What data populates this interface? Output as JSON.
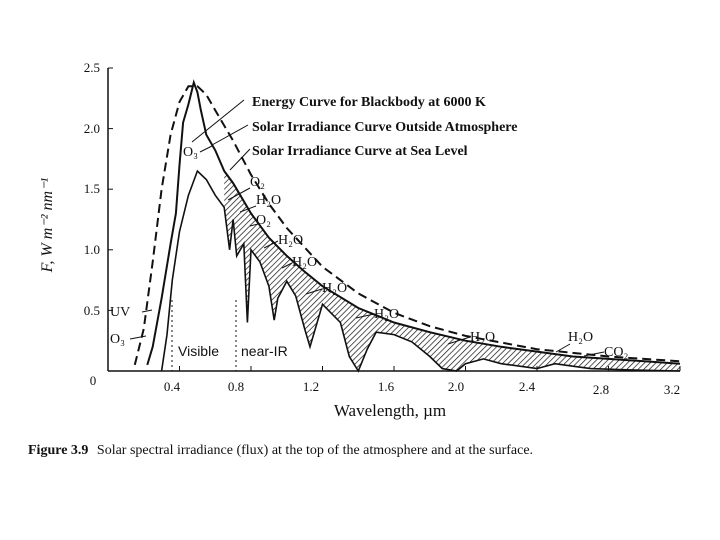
{
  "chart_data": {
    "type": "line",
    "title": "Solar spectral irradiance",
    "xlabel": "Wavelength,  µm",
    "ylabel": "F,   W m⁻² nm⁻¹",
    "xlim": [
      0,
      3.2
    ],
    "ylim": [
      0,
      2.5
    ],
    "x_ticks": [
      0.4,
      0.8,
      1.2,
      1.6,
      2.0,
      2.4,
      2.8,
      3.2
    ],
    "x_tick_labels": [
      "0.4",
      "0.8",
      "1.2",
      "1.6",
      "2.0",
      "2.4",
      "2.8",
      "3.2"
    ],
    "y_ticks": [
      0.5,
      1.0,
      1.5,
      2.0,
      2.5
    ],
    "y_tick_labels": [
      "0.5",
      "1.0",
      "1.5",
      "2.0",
      "2.5"
    ],
    "origin_label": "0",
    "series": [
      {
        "name": "Energy Curve for Blackbody at 6000 K",
        "style": "dashed",
        "x": [
          0.15,
          0.2,
          0.25,
          0.3,
          0.35,
          0.4,
          0.45,
          0.5,
          0.55,
          0.6,
          0.7,
          0.8,
          0.9,
          1.0,
          1.2,
          1.4,
          1.6,
          1.8,
          2.0,
          2.4,
          2.8,
          3.2
        ],
        "values": [
          0.05,
          0.35,
          0.9,
          1.5,
          1.95,
          2.22,
          2.35,
          2.35,
          2.28,
          2.15,
          1.9,
          1.62,
          1.38,
          1.18,
          0.86,
          0.64,
          0.48,
          0.37,
          0.29,
          0.18,
          0.12,
          0.08
        ]
      },
      {
        "name": "Solar Irradiance Curve Outside Atmosphere",
        "style": "solid",
        "x": [
          0.22,
          0.25,
          0.3,
          0.35,
          0.38,
          0.4,
          0.42,
          0.45,
          0.48,
          0.5,
          0.52,
          0.55,
          0.6,
          0.65,
          0.7,
          0.8,
          0.9,
          1.0,
          1.1,
          1.2,
          1.4,
          1.6,
          1.8,
          2.0,
          2.2,
          2.4,
          2.6,
          2.8,
          3.0,
          3.2
        ],
        "values": [
          0.05,
          0.2,
          0.6,
          1.05,
          1.3,
          1.7,
          2.05,
          2.2,
          2.38,
          2.3,
          2.15,
          1.95,
          1.82,
          1.65,
          1.55,
          1.3,
          1.1,
          0.95,
          0.82,
          0.7,
          0.52,
          0.4,
          0.32,
          0.25,
          0.2,
          0.16,
          0.12,
          0.1,
          0.08,
          0.06
        ]
      },
      {
        "name": "Solar Irradiance Curve at Sea Level",
        "style": "solid",
        "x": [
          0.3,
          0.33,
          0.36,
          0.4,
          0.45,
          0.5,
          0.55,
          0.6,
          0.65,
          0.68,
          0.7,
          0.72,
          0.76,
          0.78,
          0.8,
          0.85,
          0.9,
          0.93,
          0.95,
          1.0,
          1.05,
          1.1,
          1.13,
          1.2,
          1.3,
          1.35,
          1.4,
          1.45,
          1.5,
          1.6,
          1.7,
          1.8,
          1.87,
          1.95,
          2.0,
          2.1,
          2.2,
          2.4,
          2.5,
          2.6,
          2.7,
          2.9,
          3.2
        ],
        "values": [
          0.0,
          0.3,
          0.75,
          1.15,
          1.45,
          1.65,
          1.58,
          1.45,
          1.35,
          1.0,
          1.25,
          0.95,
          1.05,
          0.4,
          1.0,
          0.9,
          0.7,
          0.42,
          0.6,
          0.74,
          0.62,
          0.35,
          0.2,
          0.55,
          0.4,
          0.12,
          0.0,
          0.18,
          0.32,
          0.3,
          0.24,
          0.12,
          0.02,
          0.0,
          0.06,
          0.1,
          0.06,
          0.02,
          0.06,
          0.04,
          0.02,
          0.01,
          0.0
        ]
      }
    ],
    "legend": [
      "Energy Curve for Blackbody at 6000 K",
      "Solar Irradiance Curve Outside Atmosphere",
      "Solar Irradiance Curve at Sea Level"
    ],
    "annotations": {
      "o3_top": "O₃",
      "o3_bottom": "O₃",
      "uv": "UV",
      "o2_a": "O₂",
      "h2o_a": "H₂O",
      "o2_b": "O₂",
      "h2o_b": "H₂O",
      "h2o_c": "H₂O",
      "h2o_d": "H₂O",
      "h2o_e": "H₂O",
      "h2o_f": "H₂O",
      "h2o_g": "H₂O",
      "co2": "CO₂",
      "visible": "Visible",
      "near_ir": "near-IR"
    }
  },
  "caption": {
    "label": "Figure 3.9",
    "text": "Solar spectral irradiance (flux) at the top of the atmosphere and at the surface."
  }
}
